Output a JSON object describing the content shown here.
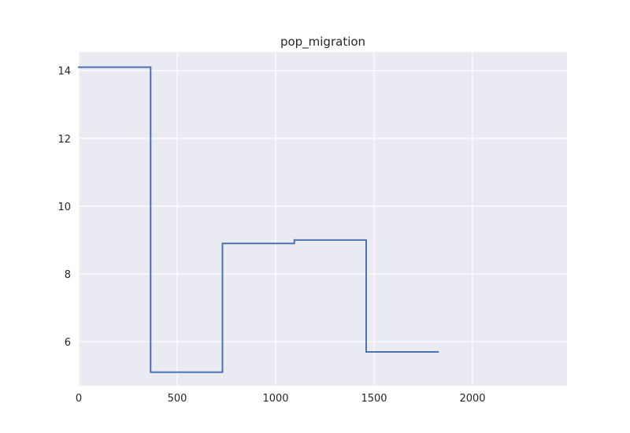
{
  "chart_data": {
    "type": "line",
    "step": true,
    "title": "pop_migration",
    "xlabel": "",
    "ylabel": "",
    "xlim": [
      0,
      2480
    ],
    "ylim": [
      4.7,
      14.55
    ],
    "xticks": [
      0,
      500,
      1000,
      1500,
      2000
    ],
    "yticks": [
      6,
      8,
      10,
      12,
      14
    ],
    "xtick_labels": [
      "0",
      "500",
      "1000",
      "1500",
      "2000"
    ],
    "ytick_labels": [
      "6",
      "8",
      "10",
      "12",
      "14"
    ],
    "grid": true,
    "legend": "none",
    "series": [
      {
        "color": "#4c72b0",
        "x": [
          0,
          365,
          730,
          1095,
          1460,
          1825
        ],
        "y": [
          14.1,
          5.1,
          8.9,
          9.0,
          5.7,
          5.7
        ]
      }
    ]
  },
  "colors": {
    "plot_background": "#eaeaf2",
    "grid": "#ffffff",
    "line": "#4c72b0"
  }
}
